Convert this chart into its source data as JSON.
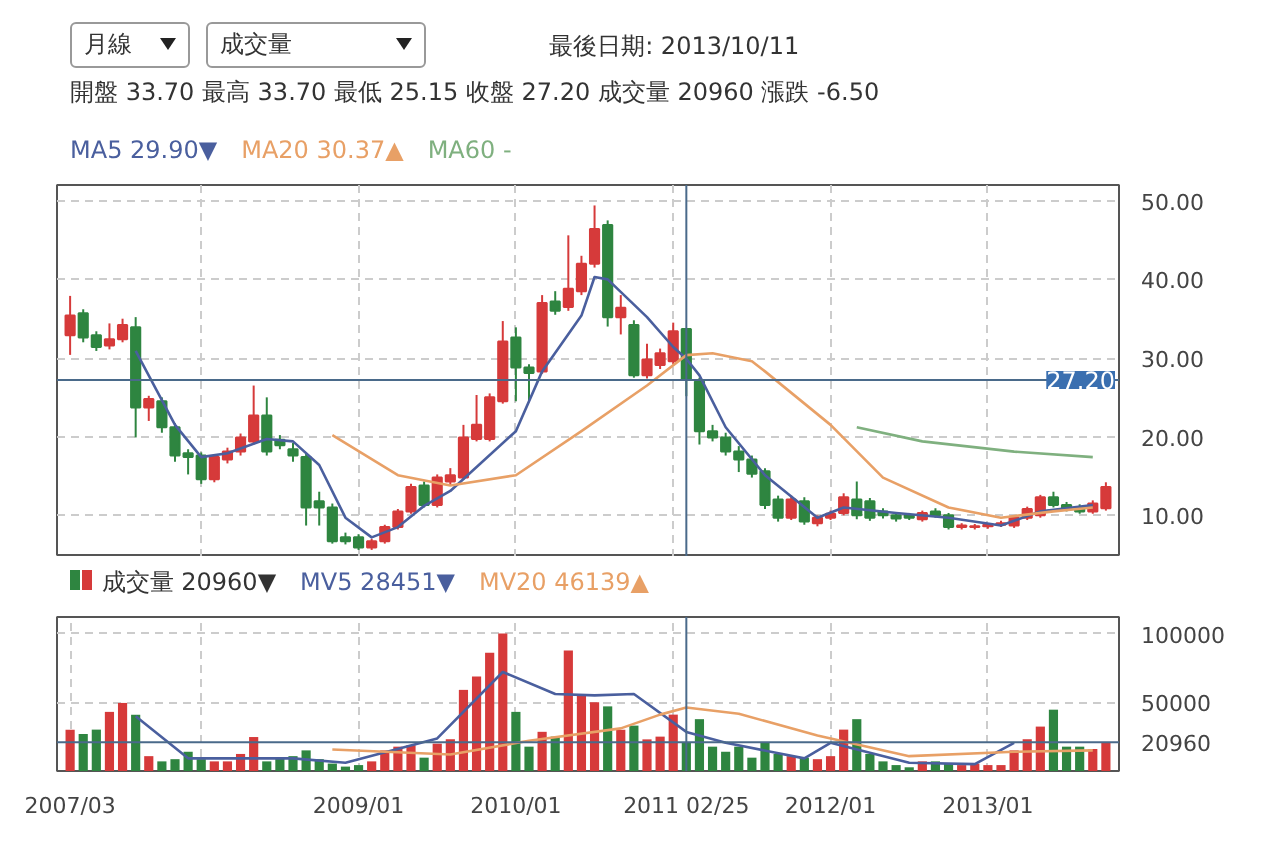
{
  "chart_data": [
    {
      "type": "candlestick",
      "title": "最後日期: 2013/10/11",
      "annotations": [
        "月線",
        "成交量",
        "開盤 33.70 最高 33.70 最低 25.15 收盤 27.20 成交量 20960 漲跌 -6.50"
      ],
      "x": [
        "2007-03",
        "2007-04",
        "2007-05",
        "2007-06",
        "2007-07",
        "2007-08",
        "2007-09",
        "2007-10",
        "2007-11",
        "2007-12",
        "2008-01",
        "2008-02",
        "2008-03",
        "2008-04",
        "2008-05",
        "2008-06",
        "2008-07",
        "2008-08",
        "2008-09",
        "2008-10",
        "2008-11",
        "2008-12",
        "2009-01",
        "2009-02",
        "2009-03",
        "2009-04",
        "2009-05",
        "2009-06",
        "2009-07",
        "2009-08",
        "2009-09",
        "2009-10",
        "2009-11",
        "2009-12",
        "2010-01",
        "2010-02",
        "2010-03",
        "2010-04",
        "2010-05",
        "2010-06",
        "2010-07",
        "2010-08",
        "2010-09",
        "2010-10",
        "2010-11",
        "2010-12",
        "2011-01",
        "2011-02",
        "2011-03",
        "2011-04",
        "2011-05",
        "2011-06",
        "2011-07",
        "2011-08",
        "2011-09",
        "2011-10",
        "2011-11",
        "2011-12",
        "2012-01",
        "2012-02",
        "2012-03",
        "2012-04",
        "2012-05",
        "2012-06",
        "2012-07",
        "2012-08",
        "2012-09",
        "2012-10",
        "2012-11",
        "2012-12",
        "2013-01",
        "2013-02",
        "2013-03",
        "2013-04",
        "2013-05",
        "2013-06",
        "2013-07",
        "2013-08",
        "2013-09",
        "2013-10"
      ],
      "ohlc": [
        [
          32.9,
          37.9,
          30.4,
          35.4
        ],
        [
          35.7,
          36.2,
          32.0,
          32.6
        ],
        [
          32.9,
          33.4,
          30.9,
          31.4
        ],
        [
          31.6,
          34.4,
          31.1,
          32.4
        ],
        [
          32.4,
          35.0,
          32.0,
          34.2
        ],
        [
          33.9,
          35.2,
          19.9,
          23.7
        ],
        [
          23.7,
          25.2,
          22.0,
          24.8
        ],
        [
          24.5,
          25.0,
          20.5,
          21.2
        ],
        [
          21.2,
          21.7,
          16.8,
          17.6
        ],
        [
          17.9,
          18.4,
          15.2,
          17.4
        ],
        [
          17.6,
          18.0,
          14.0,
          14.6
        ],
        [
          14.6,
          17.8,
          14.2,
          17.4
        ],
        [
          17.1,
          18.6,
          16.6,
          18.1
        ],
        [
          18.1,
          20.4,
          17.6,
          19.9
        ],
        [
          19.4,
          26.5,
          19.0,
          22.7
        ],
        [
          22.7,
          25.0,
          17.6,
          18.1
        ],
        [
          19.6,
          20.2,
          18.4,
          18.9
        ],
        [
          18.4,
          19.2,
          16.8,
          17.6
        ],
        [
          17.4,
          17.8,
          8.7,
          11.0
        ],
        [
          11.8,
          13.0,
          8.7,
          11.0
        ],
        [
          11.0,
          11.5,
          6.4,
          6.7
        ],
        [
          7.2,
          7.8,
          6.3,
          6.7
        ],
        [
          7.2,
          7.6,
          5.6,
          5.9
        ],
        [
          5.9,
          7.0,
          5.6,
          6.7
        ],
        [
          6.7,
          8.8,
          6.4,
          8.5
        ],
        [
          8.5,
          10.8,
          8.2,
          10.5
        ],
        [
          10.5,
          14.0,
          10.2,
          13.6
        ],
        [
          13.8,
          14.3,
          11.0,
          11.3
        ],
        [
          11.3,
          15.2,
          11.0,
          14.8
        ],
        [
          14.3,
          16.0,
          13.8,
          15.1
        ],
        [
          14.8,
          21.5,
          14.5,
          19.9
        ],
        [
          19.7,
          25.3,
          19.4,
          21.5
        ],
        [
          19.7,
          25.5,
          19.4,
          25.0
        ],
        [
          24.5,
          34.7,
          24.2,
          32.1
        ],
        [
          32.6,
          33.9,
          24.5,
          28.8
        ],
        [
          28.8,
          29.2,
          24.5,
          28.1
        ],
        [
          28.3,
          38.0,
          28.0,
          37.0
        ],
        [
          37.2,
          38.5,
          35.5,
          36.0
        ],
        [
          36.5,
          45.6,
          36.0,
          38.8
        ],
        [
          38.5,
          43.0,
          38.0,
          42.0
        ],
        [
          42.0,
          49.4,
          41.5,
          46.4
        ],
        [
          46.9,
          47.5,
          34.0,
          35.2
        ],
        [
          35.2,
          38.0,
          33.0,
          36.4
        ],
        [
          34.2,
          34.8,
          27.5,
          27.8
        ],
        [
          27.8,
          31.8,
          27.4,
          29.8
        ],
        [
          29.1,
          31.2,
          28.6,
          30.6
        ],
        [
          29.6,
          34.5,
          29.2,
          33.4
        ],
        [
          33.7,
          33.7,
          25.15,
          27.2
        ],
        [
          27.0,
          27.5,
          19.0,
          20.7
        ],
        [
          20.7,
          21.5,
          19.4,
          19.9
        ],
        [
          19.9,
          20.5,
          17.6,
          18.1
        ],
        [
          18.1,
          18.8,
          15.5,
          17.1
        ],
        [
          17.1,
          17.6,
          14.8,
          15.3
        ],
        [
          15.6,
          16.0,
          10.8,
          11.3
        ],
        [
          12.0,
          12.5,
          9.2,
          9.7
        ],
        [
          9.7,
          12.5,
          9.4,
          12.0
        ],
        [
          11.8,
          12.3,
          8.8,
          9.2
        ],
        [
          9.0,
          10.0,
          8.6,
          9.7
        ],
        [
          9.7,
          10.6,
          9.4,
          10.2
        ],
        [
          10.3,
          12.8,
          10.0,
          12.3
        ],
        [
          12.0,
          14.3,
          9.5,
          10.0
        ],
        [
          11.8,
          12.2,
          9.3,
          9.7
        ],
        [
          10.5,
          10.9,
          9.6,
          10.0
        ],
        [
          10.0,
          10.4,
          9.2,
          9.6
        ],
        [
          10.0,
          10.3,
          9.4,
          9.7
        ],
        [
          9.5,
          10.6,
          9.2,
          10.3
        ],
        [
          10.5,
          10.9,
          9.7,
          10.0
        ],
        [
          10.0,
          10.3,
          8.2,
          8.5
        ],
        [
          8.5,
          9.0,
          8.2,
          8.7
        ],
        [
          8.5,
          8.9,
          8.2,
          8.6
        ],
        [
          8.6,
          9.0,
          8.3,
          8.8
        ],
        [
          8.8,
          9.3,
          8.5,
          9.0
        ],
        [
          8.7,
          10.0,
          8.4,
          9.7
        ],
        [
          9.7,
          11.1,
          9.4,
          10.8
        ],
        [
          10.0,
          12.6,
          9.7,
          12.3
        ],
        [
          12.3,
          13.0,
          11.0,
          11.3
        ],
        [
          11.3,
          11.7,
          10.5,
          10.8
        ],
        [
          11.0,
          11.4,
          10.2,
          10.5
        ],
        [
          10.5,
          11.9,
          10.2,
          11.5
        ],
        [
          10.9,
          14.2,
          10.6,
          13.6
        ]
      ],
      "colors": [
        "#d63a3a",
        "#2e8540",
        "#2e8540",
        "#d63a3a",
        "#d63a3a",
        "#2e8540",
        "#d63a3a",
        "#2e8540",
        "#2e8540",
        "#2e8540",
        "#2e8540",
        "#d63a3a",
        "#d63a3a",
        "#d63a3a",
        "#d63a3a",
        "#2e8540",
        "#2e8540",
        "#2e8540",
        "#2e8540",
        "#2e8540",
        "#2e8540",
        "#2e8540",
        "#2e8540",
        "#d63a3a",
        "#d63a3a",
        "#d63a3a",
        "#d63a3a",
        "#2e8540",
        "#d63a3a",
        "#d63a3a",
        "#d63a3a",
        "#d63a3a",
        "#d63a3a",
        "#d63a3a",
        "#2e8540",
        "#2e8540",
        "#d63a3a",
        "#2e8540",
        "#d63a3a",
        "#d63a3a",
        "#d63a3a",
        "#2e8540",
        "#d63a3a",
        "#2e8540",
        "#d63a3a",
        "#d63a3a",
        "#d63a3a",
        "#2e8540",
        "#2e8540",
        "#2e8540",
        "#2e8540",
        "#2e8540",
        "#2e8540",
        "#2e8540",
        "#2e8540",
        "#d63a3a",
        "#2e8540",
        "#d63a3a",
        "#d63a3a",
        "#d63a3a",
        "#2e8540",
        "#2e8540",
        "#2e8540",
        "#2e8540",
        "#2e8540",
        "#d63a3a",
        "#2e8540",
        "#2e8540",
        "#d63a3a",
        "#d63a3a",
        "#d63a3a",
        "#d63a3a",
        "#d63a3a",
        "#d63a3a",
        "#d63a3a",
        "#2e8540",
        "#2e8540",
        "#2e8540",
        "#d63a3a",
        "#d63a3a"
      ],
      "series": [
        {
          "type": "line",
          "name": "MA5 29.90▼",
          "color": "#4a5f9e",
          "x": [
            "2007-08",
            "2007-11",
            "2008-01",
            "2008-03",
            "2008-06",
            "2008-08",
            "2008-10",
            "2008-12",
            "2009-02",
            "2009-04",
            "2009-06",
            "2009-08",
            "2010-01",
            "2010-03",
            "2010-06",
            "2010-07",
            "2010-08",
            "2010-11",
            "2011-01",
            "2011-02",
            "2011-03",
            "2011-05",
            "2011-08",
            "2011-12",
            "2012-02",
            "2012-06",
            "2012-10",
            "2013-02",
            "2013-05",
            "2013-09"
          ],
          "values": [
            30.9,
            21.5,
            17.4,
            17.9,
            19.7,
            19.4,
            16.4,
            9.7,
            7.2,
            8.5,
            11.2,
            13.1,
            20.7,
            28.3,
            35.4,
            40.3,
            40.0,
            35.2,
            31.4,
            29.9,
            27.8,
            21.2,
            15.1,
            9.7,
            11.0,
            10.3,
            9.7,
            8.7,
            10.5,
            11.3
          ]
        },
        {
          "type": "line",
          "name": "MA20 30.37▲",
          "color": "#e8a066",
          "x": [
            "2008-11",
            "2009-04",
            "2009-08",
            "2010-01",
            "2010-06",
            "2010-11",
            "2011-02",
            "2011-04",
            "2011-07",
            "2011-08",
            "2012-01",
            "2012-05",
            "2012-10",
            "2013-02",
            "2013-06",
            "2013-09"
          ],
          "values": [
            20.2,
            15.1,
            13.8,
            15.1,
            20.7,
            26.5,
            30.37,
            30.6,
            29.6,
            28.3,
            21.5,
            14.8,
            11.0,
            9.7,
            10.5,
            11.0
          ]
        },
        {
          "type": "line",
          "name": "MA60 -",
          "color": "#7fb07f",
          "x": [
            "2012-03",
            "2012-08",
            "2013-03",
            "2013-09"
          ],
          "values": [
            21.2,
            19.4,
            18.1,
            17.4
          ]
        }
      ],
      "legend": "top left",
      "xlim": [
        "2007-02",
        "2013-11"
      ],
      "ylim": [
        4.7,
        52
      ],
      "yticks": [
        {
          "value": 10,
          "label": "10.00"
        },
        {
          "value": 20,
          "label": "20.00"
        },
        {
          "value": 30,
          "label": "30.00"
        },
        {
          "value": 40,
          "label": "40.00"
        },
        {
          "value": 50,
          "label": "50.00"
        }
      ],
      "xticks": [
        {
          "value": "2008-01",
          "label": null
        },
        {
          "value": "2009-01",
          "label": null
        },
        {
          "value": "2010-01",
          "label": null
        },
        {
          "value": "2011-01",
          "label": null
        },
        {
          "value": "2012-01",
          "label": null
        },
        {
          "value": "2013-01",
          "label": null
        }
      ],
      "tick_labels": "y",
      "grid": true,
      "ref_lines": [
        {
          "axis": "x",
          "value": "2011-02",
          "color": "#4a6a8a"
        },
        {
          "axis": "y",
          "value": 27.2,
          "label": "27.20",
          "color": "#4a6a8a"
        }
      ]
    },
    {
      "type": "bar",
      "x": [
        "2007-03",
        "2007-04",
        "2007-05",
        "2007-06",
        "2007-07",
        "2007-08",
        "2007-09",
        "2007-10",
        "2007-11",
        "2007-12",
        "2008-01",
        "2008-02",
        "2008-03",
        "2008-04",
        "2008-05",
        "2008-06",
        "2008-07",
        "2008-08",
        "2008-09",
        "2008-10",
        "2008-11",
        "2008-12",
        "2009-01",
        "2009-02",
        "2009-03",
        "2009-04",
        "2009-05",
        "2009-06",
        "2009-07",
        "2009-08",
        "2009-09",
        "2009-10",
        "2009-11",
        "2009-12",
        "2010-01",
        "2010-02",
        "2010-03",
        "2010-04",
        "2010-05",
        "2010-06",
        "2010-07",
        "2010-08",
        "2010-09",
        "2010-10",
        "2010-11",
        "2010-12",
        "2011-01",
        "2011-02",
        "2011-03",
        "2011-04",
        "2011-05",
        "2011-06",
        "2011-07",
        "2011-08",
        "2011-09",
        "2011-10",
        "2011-11",
        "2011-12",
        "2012-01",
        "2012-02",
        "2012-03",
        "2012-04",
        "2012-05",
        "2012-06",
        "2012-07",
        "2012-08",
        "2012-09",
        "2012-10",
        "2012-11",
        "2012-12",
        "2013-01",
        "2013-02",
        "2013-03",
        "2013-04",
        "2013-05",
        "2013-06",
        "2013-07",
        "2013-08",
        "2013-09",
        "2013-10"
      ],
      "series": [
        {
          "type": "bar",
          "name": "成交量 20960▼",
          "values": [
            30000,
            26900,
            30100,
            43000,
            49500,
            40900,
            10800,
            7000,
            8600,
            14000,
            8600,
            7000,
            7000,
            12400,
            24700,
            7000,
            9700,
            10800,
            15000,
            8600,
            5400,
            3200,
            4300,
            7000,
            15000,
            17700,
            18800,
            9700,
            19900,
            23100,
            59000,
            68800,
            86000,
            100000,
            43000,
            17700,
            28500,
            25000,
            87700,
            55000,
            50000,
            47000,
            30000,
            33000,
            23000,
            25000,
            41000,
            20960,
            37700,
            17700,
            14000,
            17700,
            9700,
            20400,
            12400,
            10800,
            9700,
            8600,
            10800,
            30100,
            37700,
            12400,
            7000,
            4300,
            2700,
            7000,
            7000,
            5400,
            4300,
            5400,
            4300,
            4300,
            15000,
            23100,
            32300,
            44600,
            17700,
            17700,
            16000,
            20960
          ],
          "colors": [
            "#d63a3a",
            "#2e8540",
            "#2e8540",
            "#d63a3a",
            "#d63a3a",
            "#2e8540",
            "#d63a3a",
            "#2e8540",
            "#2e8540",
            "#2e8540",
            "#2e8540",
            "#d63a3a",
            "#d63a3a",
            "#d63a3a",
            "#d63a3a",
            "#2e8540",
            "#2e8540",
            "#2e8540",
            "#2e8540",
            "#2e8540",
            "#2e8540",
            "#2e8540",
            "#2e8540",
            "#d63a3a",
            "#d63a3a",
            "#d63a3a",
            "#d63a3a",
            "#2e8540",
            "#d63a3a",
            "#d63a3a",
            "#d63a3a",
            "#d63a3a",
            "#d63a3a",
            "#d63a3a",
            "#2e8540",
            "#2e8540",
            "#d63a3a",
            "#2e8540",
            "#d63a3a",
            "#d63a3a",
            "#d63a3a",
            "#2e8540",
            "#d63a3a",
            "#2e8540",
            "#d63a3a",
            "#d63a3a",
            "#d63a3a",
            "#2e8540",
            "#2e8540",
            "#2e8540",
            "#2e8540",
            "#2e8540",
            "#2e8540",
            "#2e8540",
            "#2e8540",
            "#d63a3a",
            "#2e8540",
            "#d63a3a",
            "#d63a3a",
            "#d63a3a",
            "#2e8540",
            "#2e8540",
            "#2e8540",
            "#2e8540",
            "#2e8540",
            "#d63a3a",
            "#2e8540",
            "#2e8540",
            "#d63a3a",
            "#d63a3a",
            "#d63a3a",
            "#d63a3a",
            "#d63a3a",
            "#d63a3a",
            "#d63a3a",
            "#2e8540",
            "#2e8540",
            "#2e8540",
            "#d63a3a",
            "#d63a3a"
          ]
        },
        {
          "type": "line",
          "name": "MV5 28451▼",
          "color": "#4a5f9e",
          "x": [
            "2007-08",
            "2007-12",
            "2008-08",
            "2008-12",
            "2009-07",
            "2009-12",
            "2010-04",
            "2010-07",
            "2010-10",
            "2011-02",
            "2011-05",
            "2011-11",
            "2012-01",
            "2012-07",
            "2012-12",
            "2013-03"
          ],
          "values": [
            39800,
            9200,
            9200,
            6000,
            23700,
            72000,
            56000,
            55000,
            56000,
            28451,
            20500,
            9200,
            20500,
            6000,
            5000,
            20500
          ]
        },
        {
          "type": "line",
          "name": "MV20 46139▲",
          "color": "#e8a066",
          "x": [
            "2008-11",
            "2009-08",
            "2010-02",
            "2010-09",
            "2010-12",
            "2011-02",
            "2011-06",
            "2011-12",
            "2012-07",
            "2013-03",
            "2013-09"
          ],
          "values": [
            15600,
            12000,
            22000,
            31000,
            41000,
            46139,
            41600,
            25800,
            10800,
            14000,
            15000
          ]
        }
      ],
      "legend": "top left",
      "xlim": [
        "2007-02",
        "2013-11"
      ],
      "ylim": [
        0,
        112000
      ],
      "yticks": [
        {
          "value": 50000,
          "label": "50000"
        },
        {
          "value": 100000,
          "label": "100000"
        }
      ],
      "xticks": [
        {
          "value": "2007-03",
          "label": "2007/03"
        },
        {
          "value": "2008-01",
          "label": null
        },
        {
          "value": "2009-01",
          "label": "2009/01"
        },
        {
          "value": "2010-01",
          "label": "2010/01"
        },
        {
          "value": "2011-01",
          "label": null
        },
        {
          "value": "2012-01",
          "label": "2012/01"
        },
        {
          "value": "2013-01",
          "label": "2013/01"
        }
      ],
      "grid": true,
      "ref_lines": [
        {
          "axis": "x",
          "value": "2011-02",
          "label": "2011 02/25",
          "color": "#4a6a8a"
        },
        {
          "axis": "y",
          "value": 20960,
          "label": "20960",
          "color": "#4a6a8a"
        }
      ]
    }
  ]
}
